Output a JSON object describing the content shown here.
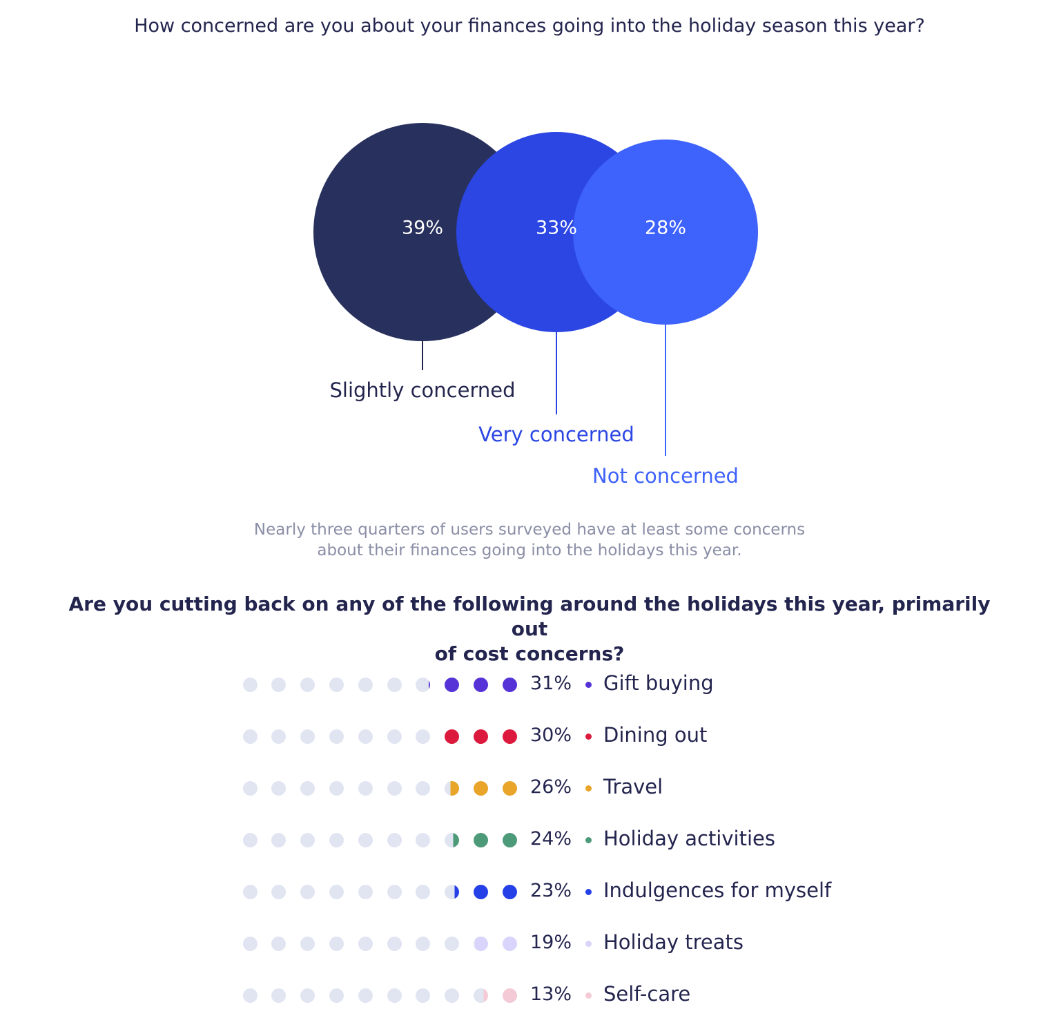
{
  "titles": {
    "chart1": "How concerned are you about your finances going into the holiday season this year?",
    "chart2_line1": "Are you cutting back on any of the following around the holidays this year, primarily out",
    "chart2_line2": "of cost concerns?"
  },
  "caption": {
    "line1": "Nearly three quarters of users surveyed have at least some concerns",
    "line2": "about their finances going into the holidays this year."
  },
  "chart_data": [
    {
      "type": "bubble",
      "title": "How concerned are you about your finances going into the holiday season this year?",
      "categories": [
        "Slightly concerned",
        "Very concerned",
        "Not concerned"
      ],
      "values": [
        39,
        33,
        28
      ],
      "value_labels": [
        "39%",
        "33%",
        "28%"
      ],
      "colors": [
        "#28305d",
        "#2b46e3",
        "#3e62fc"
      ],
      "label_colors": [
        "#23254e",
        "#2b46e3",
        "#3e62fc"
      ]
    },
    {
      "type": "dot-plot",
      "title": "Are you cutting back on any of the following around the holidays this year, primarily out of cost concerns?",
      "dots_per_row": 10,
      "empty_color": "#e1e5f2",
      "categories": [
        "Gift buying",
        "Dining out",
        "Travel",
        "Holiday activities",
        "Indulgences for myself",
        "Holiday treats",
        "Self-care"
      ],
      "values": [
        31,
        30,
        26,
        24,
        23,
        19,
        13
      ],
      "value_labels": [
        "31%",
        "30%",
        "26%",
        "24%",
        "23%",
        "19%",
        "13%"
      ],
      "colors": [
        "#5533d6",
        "#dc1a3d",
        "#e8a52a",
        "#4d9a79",
        "#2540e6",
        "#d9d4fb",
        "#f3cad5"
      ]
    }
  ]
}
